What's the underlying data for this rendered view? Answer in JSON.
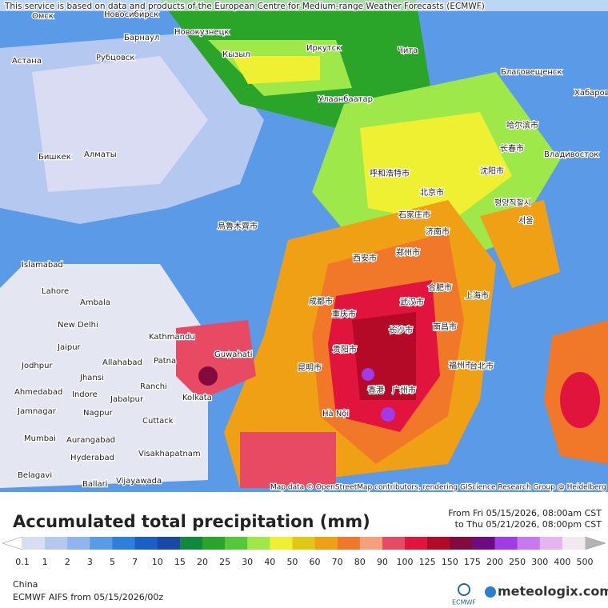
{
  "header": {
    "attribution": "This service is based on data and products of the European Centre for Medium-range Weather Forecasts (ECMWF)"
  },
  "map": {
    "credit": "Map data © OpenStreetMap contributors, rendering GIScience Research Group @ Heidelberg University",
    "places": [
      "Омск",
      "Новосибирск",
      "Барнаул",
      "Новокузнецк",
      "Астана",
      "Рубцовск",
      "Кызыл",
      "Иркутск",
      "Чита",
      "Благовещенск",
      "Хабаровск",
      "Улаанбаатар",
      "Бишкек",
      "Алматы",
      "Владивосток",
      "哈尔滨市",
      "长春市",
      "沈阳市",
      "呼和浩特市",
      "北京市",
      "石家庄市",
      "济南市",
      "郑州市",
      "西安市",
      "烏魯木齊市",
      "평양직할시",
      "서울",
      "成都市",
      "重庆市",
      "武汉市",
      "合肥市",
      "上海市",
      "长沙市",
      "南昌市",
      "贵阳市",
      "昆明市",
      "广州市",
      "福州市",
      "台北市",
      "香港",
      "Hà Nội",
      "Islamabad",
      "Lahore",
      "Ambala",
      "New Delhi",
      "Jaipur",
      "Kathmandu",
      "Guwahati",
      "Patna",
      "Allahabad",
      "Jhansi",
      "Jodhpur",
      "Ranchi",
      "Kolkata",
      "Ahmedabad",
      "Indore",
      "Jabalpur",
      "Jamnagar",
      "Nagpur",
      "Cuttack",
      "Mumbai",
      "Aurangabad",
      "Hyderabad",
      "Visakhapatnam",
      "Belagavi",
      "Ballari",
      "Vijayawada"
    ]
  },
  "legend": {
    "title": "Accumulated total precipitation (mm)",
    "from": "From Fri 05/15/2026, 08:00am CST",
    "to": "to Thu 05/21/2026, 08:00pm CST",
    "labels": [
      "0.1",
      "1",
      "2",
      "3",
      "5",
      "7",
      "10",
      "15",
      "20",
      "25",
      "30",
      "40",
      "50",
      "60",
      "70",
      "80",
      "90",
      "100",
      "125",
      "150",
      "175",
      "200",
      "250",
      "300",
      "400",
      "500"
    ],
    "colors": [
      "#d9dcf2",
      "#b4c8f0",
      "#8fb4f0",
      "#5a9ae6",
      "#2c7fdc",
      "#1a5fc8",
      "#1a48a8",
      "#0f8a3c",
      "#2aa52a",
      "#55c83a",
      "#9ee84a",
      "#f0f032",
      "#e0c814",
      "#f0a014",
      "#f07828",
      "#f5a07a",
      "#e84a64",
      "#e0143c",
      "#b40a28",
      "#820a3c",
      "#6e0a82",
      "#a03ce6",
      "#c878f0",
      "#e6b4f0",
      "#f2e8f2"
    ],
    "low_color": "#ffffff",
    "high_color": "#b4b4b4"
  },
  "footer": {
    "region": "China",
    "model": "ECMWF AIFS from 05/15/2026/00z",
    "ecmwf": "ECMWF",
    "brand": "meteologix.com"
  }
}
